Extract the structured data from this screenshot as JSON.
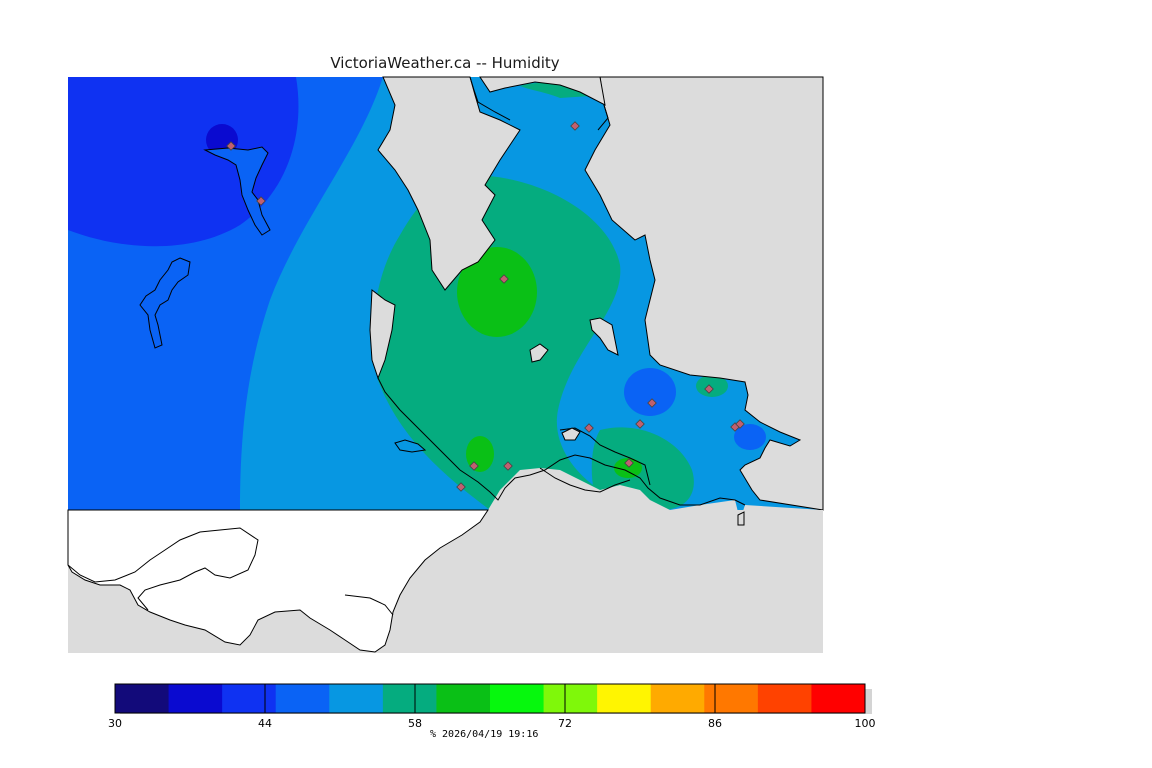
{
  "title": "VictoriaWeather.ca -- Humidity",
  "legend": {
    "min": 30,
    "max": 100,
    "colors": [
      "#120a7a",
      "#0a0ad0",
      "#0f32f2",
      "#0a63f5",
      "#0797e2",
      "#05ac7f",
      "#0ac016",
      "#06f80d",
      "#7ff80a",
      "#fff501",
      "#ffaa00",
      "#ff7800",
      "#ff4200",
      "#ff0000"
    ],
    "tick_labels": [
      {
        "value": 30,
        "label": "30"
      },
      {
        "value": 44,
        "label": "44"
      },
      {
        "value": 58,
        "label": "58"
      },
      {
        "value": 72,
        "label": "72"
      },
      {
        "value": 86,
        "label": "86"
      },
      {
        "value": 100,
        "label": "100"
      }
    ],
    "unit": "%",
    "timestamp": "2026/04/19 19:16",
    "caption": "%  2026/04/19 19:16"
  },
  "colors": {
    "land_gray": "#dcdcdc",
    "water_white": "#ffffff",
    "station_marker": "#c06070"
  }
}
